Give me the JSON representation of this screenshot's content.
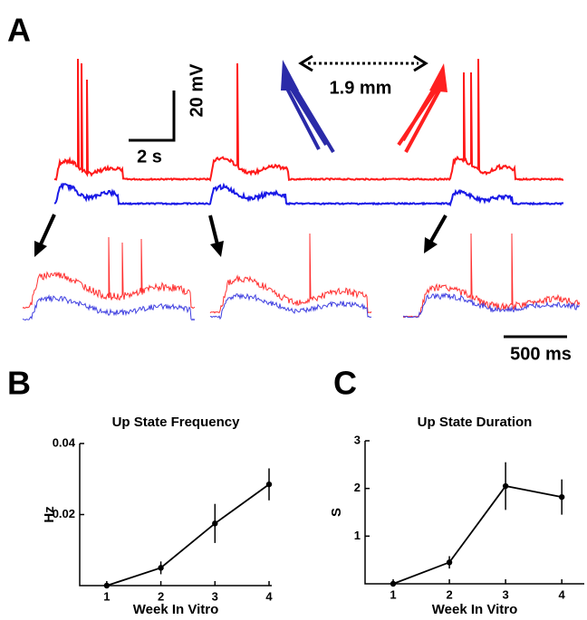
{
  "panel_a": {
    "label": "A",
    "voltage_scale": "20 mV",
    "time_scale": "2 s",
    "distance": "1.9 mm",
    "inset_time_scale": "500 ms"
  },
  "chart_data": [
    {
      "type": "line",
      "panel_label": "B",
      "title": "Up State Frequency",
      "y_label": "Hz",
      "x_label": "Week In Vitro",
      "x": [
        1,
        2,
        3,
        4
      ],
      "values": [
        0,
        0.005,
        0.0175,
        0.0285
      ],
      "errors": [
        0,
        0.0018,
        0.0055,
        0.0045
      ],
      "color": "#000000",
      "xlim": [
        0.5,
        4.05
      ],
      "ylim": [
        0,
        0.04
      ],
      "xticks": [
        1,
        2,
        3,
        4
      ],
      "yticks": [
        0.02,
        0.04
      ]
    },
    {
      "type": "line",
      "panel_label": "C",
      "title": "Up State Duration",
      "y_label": "S",
      "x_label": "Week In Vitro",
      "x": [
        1,
        2,
        3,
        4
      ],
      "values": [
        0,
        0.45,
        2.05,
        1.82
      ],
      "errors": [
        0,
        0.13,
        0.5,
        0.37
      ],
      "color": "#000000",
      "xlim": [
        0.5,
        4.4
      ],
      "ylim": [
        0,
        3
      ],
      "xticks": [
        1,
        2,
        3,
        4
      ],
      "yticks": [
        1,
        2,
        3
      ]
    }
  ]
}
